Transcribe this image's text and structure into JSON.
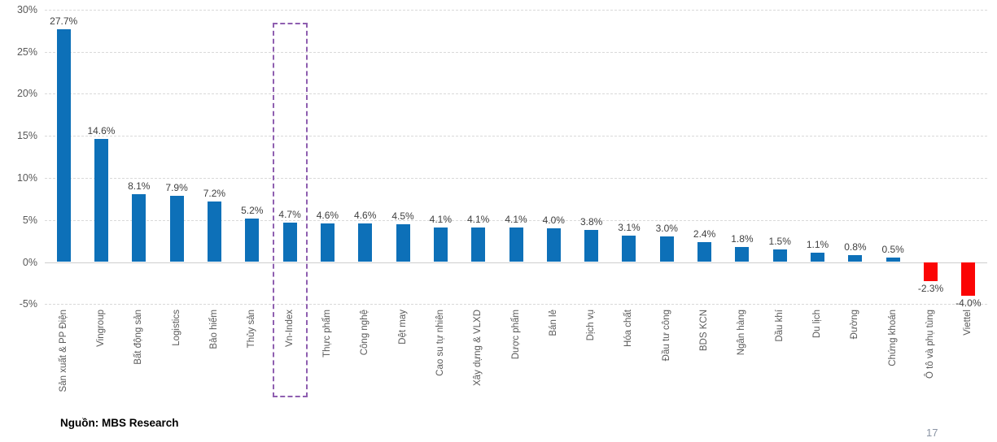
{
  "chart_data": {
    "type": "bar",
    "title": "",
    "xlabel": "",
    "ylabel": "",
    "categories": [
      "Sản xuất & PP Điện",
      "Vingroup",
      "Bất động sản",
      "Logistics",
      "Bảo hiểm",
      "Thủy sản",
      "Vn-Index",
      "Thực phẩm",
      "Công nghệ",
      "Dệt may",
      "Cao su tự nhiên",
      "Xây dựng & VLXD",
      "Dược phẩm",
      "Bán lẻ",
      "Dịch vụ",
      "Hóa chất",
      "Đầu tư công",
      "BDS KCN",
      "Ngân hàng",
      "Dầu khí",
      "Du lịch",
      "Đường",
      "Chứng khoán",
      "Ô tô và phụ tùng",
      "Viettel"
    ],
    "values": [
      27.7,
      14.6,
      8.1,
      7.9,
      7.2,
      5.2,
      4.7,
      4.6,
      4.6,
      4.5,
      4.1,
      4.1,
      4.1,
      4.0,
      3.8,
      3.1,
      3.0,
      2.4,
      1.8,
      1.5,
      1.1,
      0.8,
      0.5,
      -2.3,
      -4.0
    ],
    "value_labels": [
      "27.7%",
      "14.6%",
      "8.1%",
      "7.9%",
      "7.2%",
      "5.2%",
      "4.7%",
      "4.6%",
      "4.6%",
      "4.5%",
      "4.1%",
      "4.1%",
      "4.1%",
      "4.0%",
      "3.8%",
      "3.1%",
      "3.0%",
      "2.4%",
      "1.8%",
      "1.5%",
      "1.1%",
      "0.8%",
      "0.5%",
      "-2.3%",
      "-4.0%"
    ],
    "ylim": [
      -5,
      30
    ],
    "yticks": [
      30,
      25,
      20,
      15,
      10,
      5,
      0,
      -5
    ],
    "ytick_labels": [
      "30%",
      "25%",
      "20%",
      "15%",
      "10%",
      "5%",
      "0%",
      "-5%"
    ],
    "grid": "horizontal dashed",
    "legend": "none",
    "highlight": {
      "category": "Vn-Index",
      "style": "dashed-box"
    },
    "colors": {
      "positive_bar": "#0d70b8",
      "negative_bar": "#fb0505",
      "highlight_box": "#8f5fb0",
      "gridline": "#d9d9d9",
      "zero_line": "#cfcfcf",
      "axis_text": "#595959",
      "value_text": "#3f3f3f"
    }
  },
  "footer": {
    "source": "Nguồn: MBS Research",
    "page_number": "17"
  }
}
